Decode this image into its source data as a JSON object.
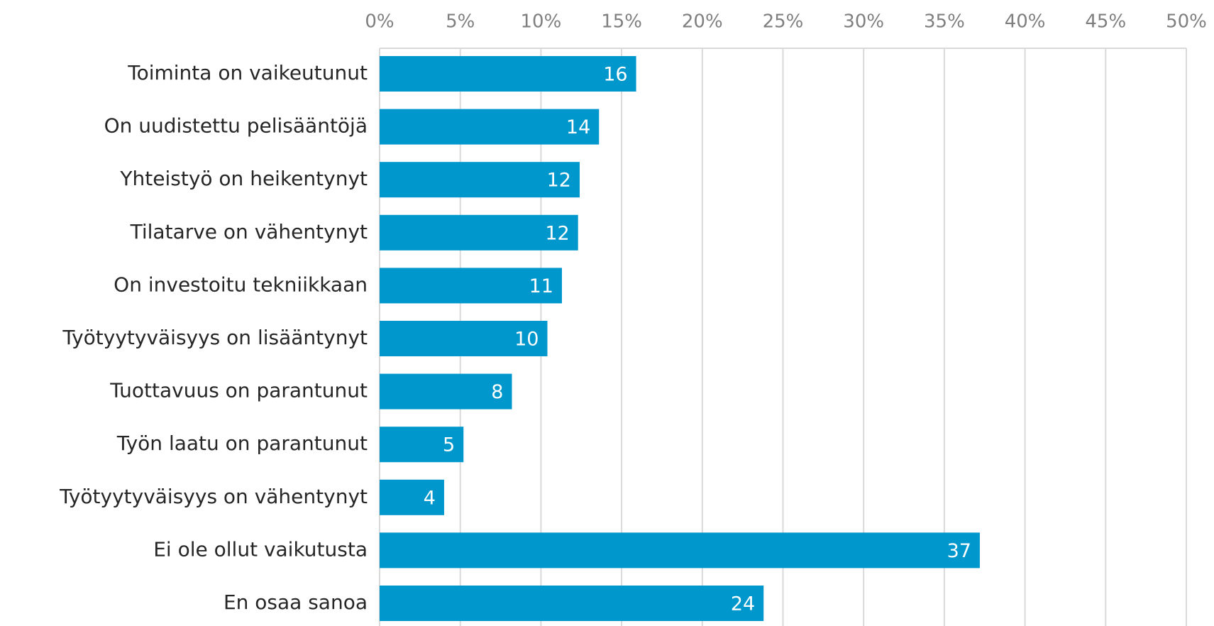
{
  "chart_data": {
    "type": "bar",
    "orientation": "horizontal",
    "categories": [
      "Toiminta on vaikeutunut",
      "On uudistettu pelisääntöjä",
      "Yhteistyö on heikentynyt",
      "Tilatarve on vähentynyt",
      "On investoitu tekniikkaan",
      "Työtyytyväisyys on lisääntynyt",
      "Tuottavuus on parantunut",
      "Työn laatu on parantunut",
      "Työtyytyväisyys on vähentynyt",
      "Ei ole ollut vaikutusta",
      "En osaa sanoa"
    ],
    "values": [
      15.9,
      13.6,
      12.4,
      12.3,
      11.3,
      10.4,
      8.2,
      5.2,
      4.0,
      37.2,
      23.8
    ],
    "value_labels": [
      "16",
      "14",
      "12",
      "12",
      "11",
      "10",
      "8",
      "5",
      "4",
      "37",
      "24"
    ],
    "color": "#0097cc",
    "xlim": [
      0,
      50
    ],
    "xticks": [
      {
        "value": 0,
        "label": "0%"
      },
      {
        "value": 5,
        "label": "5%"
      },
      {
        "value": 10,
        "label": "10%"
      },
      {
        "value": 15,
        "label": "15%"
      },
      {
        "value": 20,
        "label": "20%"
      },
      {
        "value": 25,
        "label": "25%"
      },
      {
        "value": 30,
        "label": "30%"
      },
      {
        "value": 35,
        "label": "35%"
      },
      {
        "value": 40,
        "label": "40%"
      },
      {
        "value": 45,
        "label": "45%"
      },
      {
        "value": 50,
        "label": "50%"
      }
    ],
    "grid": true
  }
}
